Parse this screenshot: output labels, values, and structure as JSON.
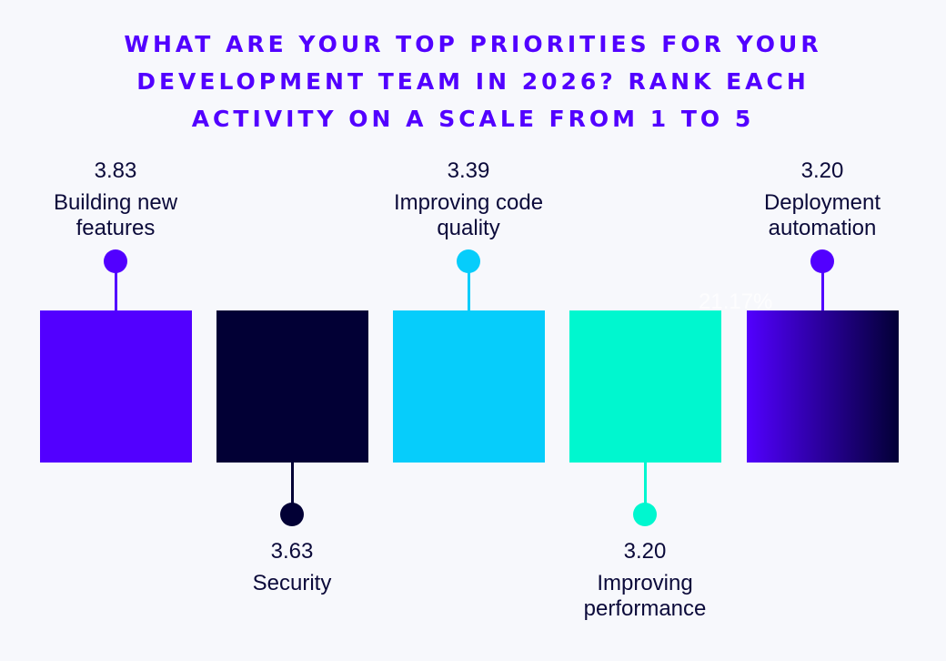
{
  "chart_data": {
    "type": "bar",
    "title_lines": [
      "WHAT ARE YOUR TOP PRIORITIES FOR YOUR",
      "DEVELOPMENT TEAM IN 2026? RANK EACH",
      "ACTIVITY ON A SCALE FROM 1 TO 5"
    ],
    "categories": [
      [
        "Building new",
        "features"
      ],
      [
        "Security"
      ],
      [
        "Improving code",
        "quality"
      ],
      [
        "Improving",
        "performance"
      ],
      [
        "Deployment",
        "automation"
      ]
    ],
    "values": [
      "3.83",
      "3.63",
      "3.39",
      "3.20",
      "3.20"
    ],
    "colors": [
      "#5200ff",
      "#020035",
      "#06cdfb",
      "#00f7cf",
      "gradient:#5200ff-#020035"
    ],
    "dot_colors": [
      "#5200ff",
      "#020035",
      "#06cdfb",
      "#00f7cf",
      "#5200ff"
    ],
    "label_position": [
      "top",
      "bottom",
      "top",
      "bottom",
      "top"
    ],
    "annotation": "21.17%",
    "xlabel": "",
    "ylabel": "",
    "ylim": [
      1,
      5
    ]
  }
}
